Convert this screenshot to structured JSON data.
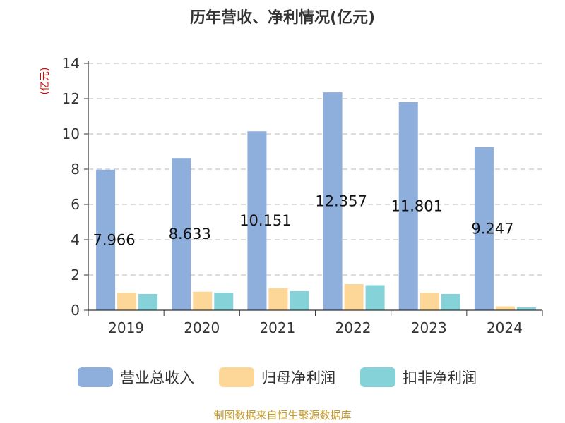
{
  "chart_data": {
    "type": "bar",
    "title": "历年营收、净利情况(亿元)",
    "ylabel": "(亿元)",
    "categories": [
      "2019",
      "2020",
      "2021",
      "2022",
      "2023",
      "2024"
    ],
    "y_ticks": [
      "0",
      "2",
      "4",
      "6",
      "8",
      "10",
      "12",
      "14"
    ],
    "ylim": [
      0,
      14
    ],
    "grid": true,
    "legend_position": "bottom",
    "series": [
      {
        "name": "营业总收入",
        "color": "#8eaedb",
        "values": [
          7.966,
          8.633,
          10.151,
          12.357,
          11.801,
          9.247
        ],
        "labels": [
          "7.966",
          "8.633",
          "10.151",
          "12.357",
          "11.801",
          "9.247"
        ]
      },
      {
        "name": "归母净利润",
        "color": "#fdd797",
        "values": [
          1.0,
          1.05,
          1.25,
          1.48,
          1.0,
          0.22
        ]
      },
      {
        "name": "扣非净利润",
        "color": "#85d3d8",
        "values": [
          0.92,
          1.0,
          1.08,
          1.42,
          0.92,
          0.16
        ]
      }
    ],
    "source": "制图数据来自恒生聚源数据库"
  }
}
